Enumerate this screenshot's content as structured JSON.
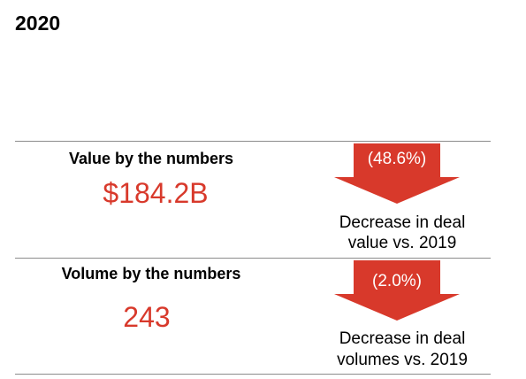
{
  "header": {
    "year": "2020"
  },
  "colors": {
    "accent": "#d8392b",
    "divider": "#8c8c8c"
  },
  "sections": [
    {
      "label": "Value by the numbers",
      "big_value": "$184.2B",
      "arrow_icon": "down-arrow-icon",
      "change": "(48.6%)",
      "caption_line1": "Decrease in deal",
      "caption_line2": "value vs. 2019"
    },
    {
      "label": "Volume by the numbers",
      "big_value": "243",
      "arrow_icon": "down-arrow-icon",
      "change": "(2.0%)",
      "caption_line1": "Decrease in deal",
      "caption_line2": "volumes vs. 2019"
    }
  ]
}
